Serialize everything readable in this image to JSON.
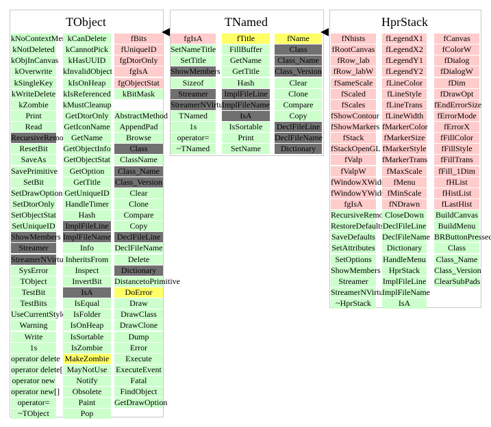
{
  "classes": [
    {
      "title": "TObject",
      "columns": [
        [
          [
            "kNoContextMenu",
            "g"
          ],
          [
            "kNotDeleted",
            "g"
          ],
          [
            "kObjInCanvas",
            "g"
          ],
          [
            "kOverwrite",
            "g"
          ],
          [
            "kSingleKey",
            "g"
          ],
          [
            "kWriteDelete",
            "g"
          ],
          [
            "kZombie",
            "g"
          ],
          [
            "Print",
            "g"
          ],
          [
            "Read",
            "g"
          ],
          [
            "RecursiveRemove",
            "d"
          ],
          [
            "ResetBit",
            "g"
          ],
          [
            "SaveAs",
            "g"
          ],
          [
            "SavePrimitive",
            "g"
          ],
          [
            "SetBit",
            "g"
          ],
          [
            "SetDrawOption",
            "g"
          ],
          [
            "SetDtorOnly",
            "g"
          ],
          [
            "SetObjectStat",
            "g"
          ],
          [
            "SetUniqueID",
            "g"
          ],
          [
            "ShowMembers",
            "d"
          ],
          [
            "Streamer",
            "d"
          ],
          [
            "StreamerNVirtual",
            "d"
          ],
          [
            "SysError",
            "g"
          ],
          [
            "TObject",
            "g"
          ],
          [
            "TestBit",
            "g"
          ],
          [
            "TestBits",
            "g"
          ],
          [
            "UseCurrentStyle",
            "g"
          ],
          [
            "Warning",
            "g"
          ],
          [
            "Write",
            "g"
          ],
          [
            "1s",
            "g"
          ],
          [
            "operator delete",
            "g"
          ],
          [
            "operator delete[]",
            "g"
          ],
          [
            "operator new",
            "g"
          ],
          [
            "operator new[]",
            "g"
          ],
          [
            "operator=",
            "g"
          ],
          [
            "~TObject",
            "g"
          ]
        ],
        [
          [
            "kCanDelete",
            "g"
          ],
          [
            "kCannotPick",
            "g"
          ],
          [
            "kHasUUID",
            "g"
          ],
          [
            "kInvalidObject",
            "g"
          ],
          [
            "kIsOnHeap",
            "g"
          ],
          [
            "kIsReferenced",
            "g"
          ],
          [
            "kMustCleanup",
            "g"
          ],
          [
            "GetDtorOnly",
            "g"
          ],
          [
            "GetIconName",
            "g"
          ],
          [
            "GetName",
            "g"
          ],
          [
            "GetObjectInfo",
            "g"
          ],
          [
            "GetObjectStat",
            "g"
          ],
          [
            "GetOption",
            "g"
          ],
          [
            "GetTitle",
            "g"
          ],
          [
            "GetUniqueID",
            "g"
          ],
          [
            "HandleTimer",
            "g"
          ],
          [
            "Hash",
            "g"
          ],
          [
            "ImplFileLine",
            "d"
          ],
          [
            "ImplFileName",
            "d"
          ],
          [
            "Info",
            "g"
          ],
          [
            "InheritsFrom",
            "g"
          ],
          [
            "Inspect",
            "g"
          ],
          [
            "InvertBit",
            "g"
          ],
          [
            "IsA",
            "d"
          ],
          [
            "IsEqual",
            "g"
          ],
          [
            "IsFolder",
            "g"
          ],
          [
            "IsOnHeap",
            "g"
          ],
          [
            "IsSortable",
            "g"
          ],
          [
            "IsZombie",
            "g"
          ],
          [
            "MakeZombie",
            "y"
          ],
          [
            "MayNotUse",
            "g"
          ],
          [
            "Notify",
            "g"
          ],
          [
            "Obsolete",
            "g"
          ],
          [
            "Paint",
            "g"
          ],
          [
            "Pop",
            "g"
          ]
        ],
        [
          [
            "fBits",
            "r"
          ],
          [
            "fUniqueID",
            "r"
          ],
          [
            "fgDtorOnly",
            "r"
          ],
          [
            "fgIsA",
            "r"
          ],
          [
            "fgObjectStat",
            "r"
          ],
          [
            "kBitMask",
            "g"
          ],
          [
            "",
            "e"
          ],
          [
            "AbstractMethod",
            "g"
          ],
          [
            "AppendPad",
            "g"
          ],
          [
            "Browse",
            "g"
          ],
          [
            "Class",
            "d"
          ],
          [
            "ClassName",
            "g"
          ],
          [
            "Class_Name",
            "d"
          ],
          [
            "Class_Version",
            "d"
          ],
          [
            "Clear",
            "g"
          ],
          [
            "Clone",
            "g"
          ],
          [
            "Compare",
            "g"
          ],
          [
            "Copy",
            "g"
          ],
          [
            "DeclFileLine",
            "d"
          ],
          [
            "DeclFileName",
            "g"
          ],
          [
            "Delete",
            "g"
          ],
          [
            "Dictionary",
            "d"
          ],
          [
            "DistancetoPrimitive",
            "g"
          ],
          [
            "DoError",
            "y"
          ],
          [
            "Draw",
            "g"
          ],
          [
            "DrawClass",
            "g"
          ],
          [
            "DrawClone",
            "g"
          ],
          [
            "Dump",
            "g"
          ],
          [
            "Error",
            "g"
          ],
          [
            "Execute",
            "g"
          ],
          [
            "ExecuteEvent",
            "g"
          ],
          [
            "Fatal",
            "g"
          ],
          [
            "FindObject",
            "g"
          ],
          [
            "GetDrawOption",
            "g"
          ]
        ]
      ]
    },
    {
      "title": "TNamed",
      "columns": [
        [
          [
            "fgIsA",
            "r"
          ],
          [
            "SetNameTitle",
            "g"
          ],
          [
            "SetTitle",
            "g"
          ],
          [
            "ShowMembers",
            "d"
          ],
          [
            "Sizeof",
            "g"
          ],
          [
            "Streamer",
            "d"
          ],
          [
            "StreamerNVirtual",
            "d"
          ],
          [
            "TNamed",
            "g"
          ],
          [
            "1s",
            "g"
          ],
          [
            "operator=",
            "g"
          ],
          [
            "~TNamed",
            "g"
          ]
        ],
        [
          [
            "fTitle",
            "y"
          ],
          [
            "FillBuffer",
            "g"
          ],
          [
            "GetName",
            "g"
          ],
          [
            "GetTitle",
            "g"
          ],
          [
            "Hash",
            "g"
          ],
          [
            "ImplFileLine",
            "d"
          ],
          [
            "ImplFileName",
            "d"
          ],
          [
            "IsA",
            "d"
          ],
          [
            "IsSortable",
            "g"
          ],
          [
            "Print",
            "g"
          ],
          [
            "SetName",
            "g"
          ]
        ],
        [
          [
            "fName",
            "y"
          ],
          [
            "Class",
            "d"
          ],
          [
            "Class_Name",
            "d"
          ],
          [
            "Class_Version",
            "d"
          ],
          [
            "Clear",
            "g"
          ],
          [
            "Clone",
            "g"
          ],
          [
            "Compare",
            "g"
          ],
          [
            "Copy",
            "g"
          ],
          [
            "DeclFileLine",
            "d"
          ],
          [
            "DeclFileName",
            "d"
          ],
          [
            "Dictionary",
            "d"
          ]
        ]
      ]
    },
    {
      "title": "HprStack",
      "columns": [
        [
          [
            "fNhists",
            "r"
          ],
          [
            "fRootCanvas",
            "r"
          ],
          [
            "fRow_lab",
            "r"
          ],
          [
            "fRow_labW",
            "r"
          ],
          [
            "fSameScale",
            "r"
          ],
          [
            "fScaled",
            "r"
          ],
          [
            "fScales",
            "r"
          ],
          [
            "fShowContour",
            "r"
          ],
          [
            "fShowMarkers",
            "r"
          ],
          [
            "fStack",
            "r"
          ],
          [
            "fStackOpenGL",
            "r"
          ],
          [
            "fValp",
            "r"
          ],
          [
            "fValpW",
            "r"
          ],
          [
            "fWindowXWidth",
            "r"
          ],
          [
            "fWindowYWidth",
            "r"
          ],
          [
            "fgIsA",
            "r"
          ],
          [
            "RecursiveRemove",
            "g"
          ],
          [
            "RestoreDefaults",
            "g"
          ],
          [
            "SaveDefaults",
            "g"
          ],
          [
            "SetAttributes",
            "g"
          ],
          [
            "SetOptions",
            "g"
          ],
          [
            "ShowMembers",
            "g"
          ],
          [
            "Streamer",
            "g"
          ],
          [
            "StreamerNVirtual",
            "g"
          ],
          [
            "~HprStack",
            "g"
          ]
        ],
        [
          [
            "fLegendX1",
            "r"
          ],
          [
            "fLegendX2",
            "r"
          ],
          [
            "fLegendY1",
            "r"
          ],
          [
            "fLegendY2",
            "r"
          ],
          [
            "fLineColor",
            "r"
          ],
          [
            "fLineStyle",
            "r"
          ],
          [
            "fLineTrans",
            "r"
          ],
          [
            "fLineWidth",
            "r"
          ],
          [
            "fMarkerColor",
            "r"
          ],
          [
            "fMarkerSize",
            "r"
          ],
          [
            "fMarkerStyle",
            "r"
          ],
          [
            "fMarkerTrans",
            "r"
          ],
          [
            "fMaxScale",
            "r"
          ],
          [
            "fMenu",
            "r"
          ],
          [
            "fMinScale",
            "r"
          ],
          [
            "fNDrawn",
            "r"
          ],
          [
            "CloseDown",
            "g"
          ],
          [
            "DeclFileLine",
            "g"
          ],
          [
            "DeclFileName",
            "g"
          ],
          [
            "Dictionary",
            "g"
          ],
          [
            "HandleMenu",
            "g"
          ],
          [
            "HprStack",
            "g"
          ],
          [
            "ImplFileLine",
            "g"
          ],
          [
            "ImplFileName",
            "g"
          ],
          [
            "IsA",
            "g"
          ]
        ],
        [
          [
            "fCanvas",
            "r"
          ],
          [
            "fColorW",
            "r"
          ],
          [
            "fDialog",
            "r"
          ],
          [
            "fDialogW",
            "r"
          ],
          [
            "fDim",
            "r"
          ],
          [
            "fDrawOpt",
            "r"
          ],
          [
            "fEndErrorSize",
            "r"
          ],
          [
            "fErrorMode",
            "r"
          ],
          [
            "fErrorX",
            "r"
          ],
          [
            "fFillColor",
            "r"
          ],
          [
            "fFillStyle",
            "r"
          ],
          [
            "fFillTrans",
            "r"
          ],
          [
            "fFill_1Dim",
            "r"
          ],
          [
            "fHList",
            "r"
          ],
          [
            "fHistList",
            "r"
          ],
          [
            "fLastHist",
            "r"
          ],
          [
            "BuildCanvas",
            "g"
          ],
          [
            "BuildMenu",
            "g"
          ],
          [
            "BRButtonPressed",
            "g"
          ],
          [
            "Class",
            "g"
          ],
          [
            "Class_Name",
            "g"
          ],
          [
            "Class_Version",
            "g"
          ],
          [
            "ClearSubPads",
            "g"
          ]
        ]
      ]
    }
  ]
}
